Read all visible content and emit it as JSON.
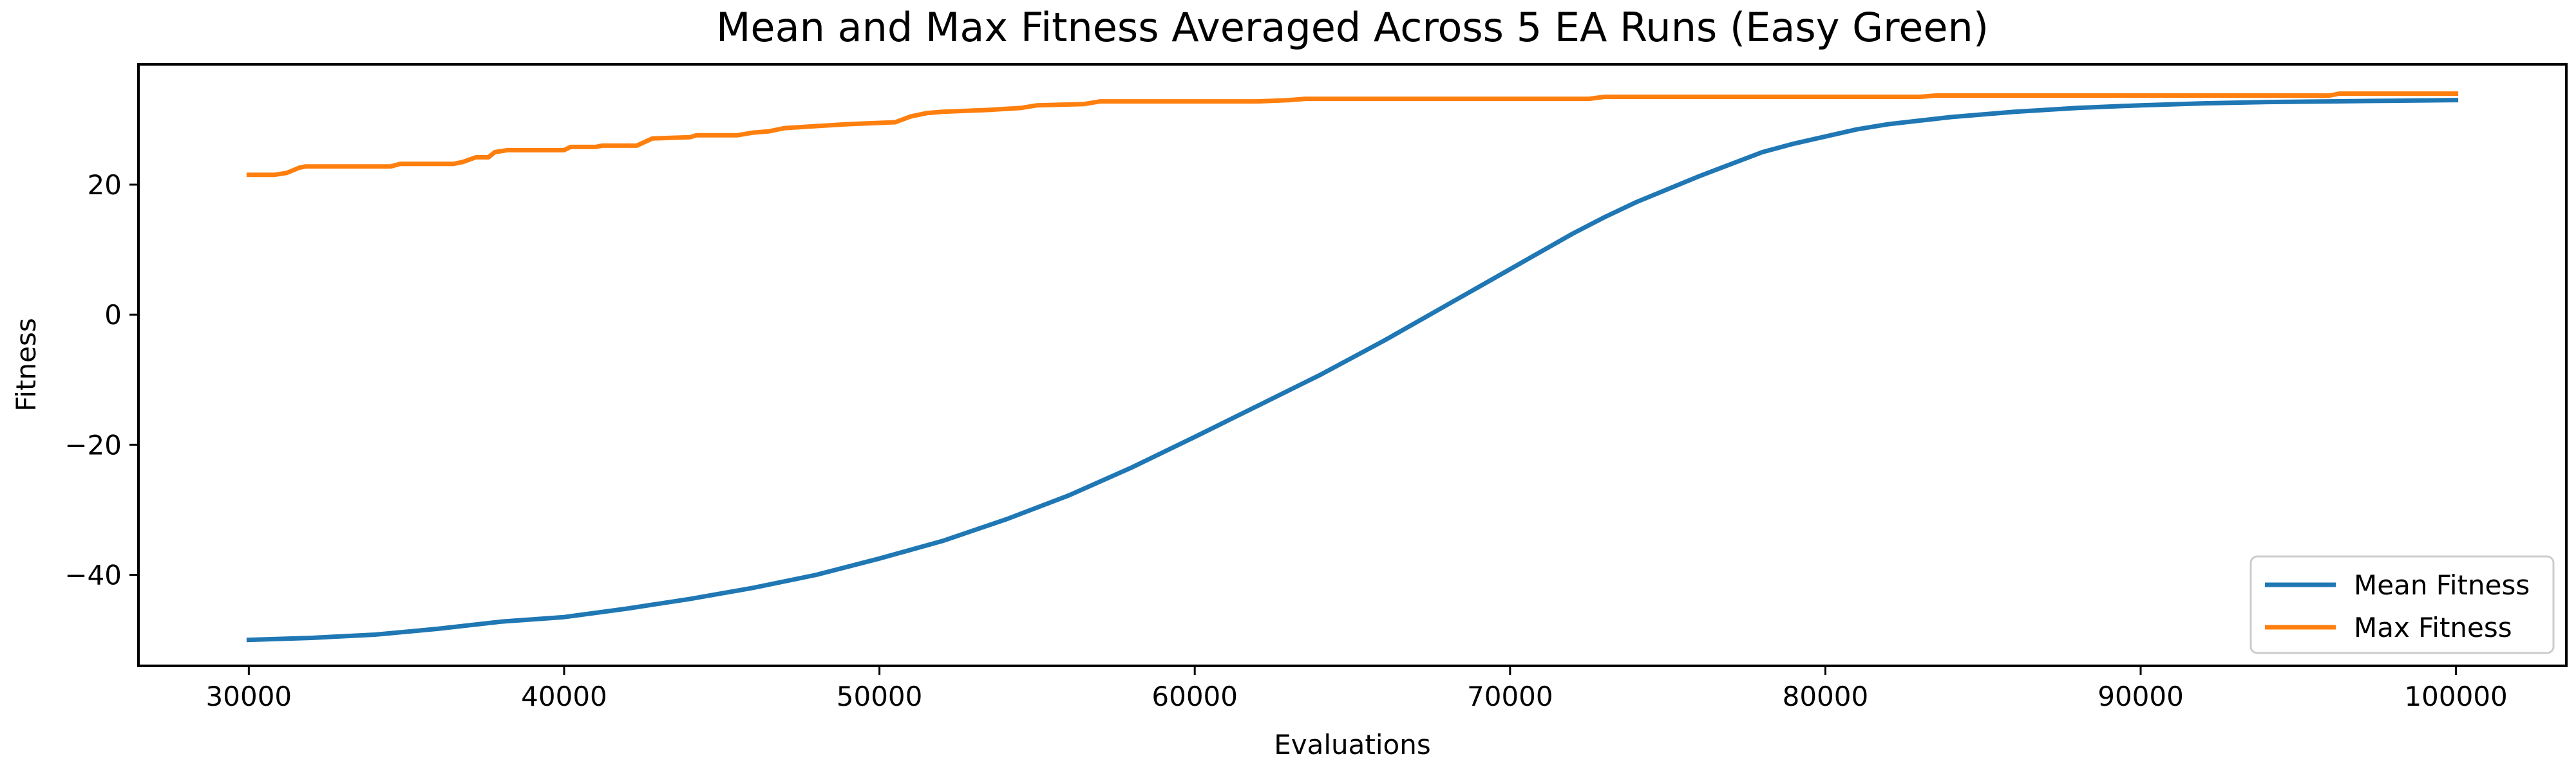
{
  "chart_data": {
    "type": "line",
    "title": "Mean and Max Fitness Averaged Across 5 EA Runs (Easy Green)",
    "xlabel": "Evaluations",
    "ylabel": "Fitness",
    "xlim": [
      26500,
      103500
    ],
    "ylim": [
      -54,
      38.5
    ],
    "xticks": [
      30000,
      40000,
      50000,
      60000,
      70000,
      80000,
      90000,
      100000
    ],
    "xtick_labels": [
      "30000",
      "40000",
      "50000",
      "60000",
      "70000",
      "80000",
      "90000",
      "100000"
    ],
    "yticks": [
      -40,
      -20,
      0,
      20
    ],
    "ytick_labels": [
      "−40",
      "−20",
      "0",
      "20"
    ],
    "grid": false,
    "legend_position": "lower-right",
    "series": [
      {
        "name": "Mean Fitness",
        "color": "#1f77b4",
        "x": [
          30000,
          32000,
          34000,
          36000,
          38000,
          40000,
          42000,
          44000,
          46000,
          48000,
          50000,
          52000,
          54000,
          56000,
          58000,
          60000,
          62000,
          64000,
          66000,
          68000,
          70000,
          72000,
          73000,
          74000,
          76000,
          78000,
          79000,
          80000,
          81000,
          82000,
          84000,
          86000,
          88000,
          90000,
          92000,
          94000,
          96000,
          98000,
          100000
        ],
        "y": [
          -50.0,
          -49.7,
          -49.2,
          -48.3,
          -47.2,
          -46.5,
          -45.2,
          -43.7,
          -42.0,
          -40.0,
          -37.5,
          -34.8,
          -31.5,
          -27.8,
          -23.5,
          -18.8,
          -14.0,
          -9.2,
          -4.0,
          1.5,
          7.0,
          12.5,
          15.0,
          17.3,
          21.3,
          25.0,
          26.3,
          27.4,
          28.5,
          29.3,
          30.4,
          31.2,
          31.8,
          32.2,
          32.5,
          32.7,
          32.8,
          32.9,
          33.0
        ]
      },
      {
        "name": "Max Fitness",
        "color": "#ff7f0e",
        "x": [
          30000,
          30800,
          31200,
          31600,
          31800,
          34500,
          34800,
          36500,
          36800,
          37200,
          37600,
          37800,
          38200,
          39000,
          40000,
          40200,
          41000,
          41200,
          42300,
          42800,
          44000,
          44200,
          45500,
          46000,
          46500,
          47000,
          48000,
          49000,
          50000,
          50500,
          51000,
          51500,
          52000,
          53500,
          54500,
          55000,
          56500,
          57000,
          62000,
          63000,
          63500,
          72500,
          73000,
          83000,
          83500,
          96000,
          96300,
          100000
        ],
        "y": [
          21.5,
          21.5,
          21.8,
          22.6,
          22.8,
          22.8,
          23.2,
          23.2,
          23.5,
          24.2,
          24.2,
          25.0,
          25.3,
          25.3,
          25.3,
          25.8,
          25.8,
          26.0,
          26.0,
          27.1,
          27.3,
          27.6,
          27.6,
          28.0,
          28.2,
          28.7,
          29.0,
          29.3,
          29.5,
          29.6,
          30.5,
          31.0,
          31.2,
          31.5,
          31.8,
          32.2,
          32.4,
          32.8,
          32.8,
          33.0,
          33.2,
          33.2,
          33.5,
          33.5,
          33.7,
          33.7,
          34.0,
          34.0
        ]
      }
    ]
  }
}
